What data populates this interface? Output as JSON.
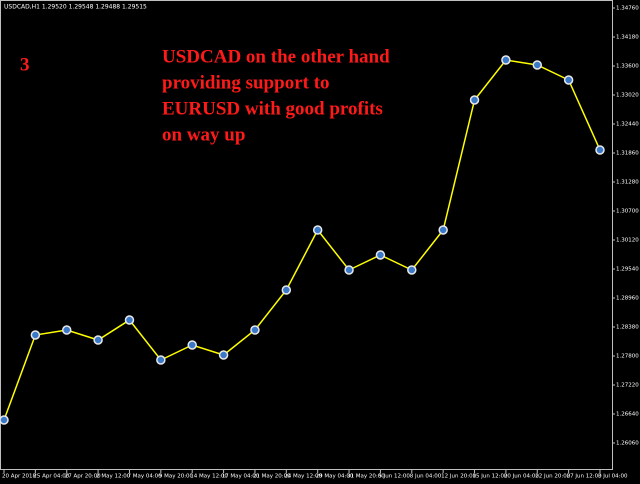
{
  "chart_data": {
    "type": "line",
    "title": "USDCAD,H1 1.29520 1.29548 1.29488 1.29515",
    "annotations": [
      "3",
      "USDCAD on the other hand",
      "providing support to",
      "EURUSD with good profits",
      "on way up"
    ],
    "categories": [
      "20 Apr 2018",
      "25 Apr 04:00",
      "27 Apr 20:00",
      "2 May 12:00",
      "7 May 04:00",
      "9 May 20:00",
      "14 May 12:00",
      "17 May 04:00",
      "21 May 20:00",
      "24 May 12:00",
      "29 May 04:00",
      "31 May 20:00",
      "5 Jun 12:00",
      "8 Jun 04:00",
      "12 Jun 20:00",
      "15 Jun 12:00",
      "20 Jun 04:00",
      "22 Jun 20:00",
      "27 Jun 12:00",
      "3 Jul 04:00"
    ],
    "series": [
      {
        "name": "USDCAD",
        "color": "#ffff00",
        "values": [
          1.2652,
          1.2822,
          1.2832,
          1.2812,
          1.2852,
          1.2772,
          1.2802,
          1.2782,
          1.2832,
          1.2912,
          1.3032,
          1.2952,
          1.2982,
          1.2952,
          1.3032,
          1.3292,
          1.3372,
          1.3362,
          1.3332,
          1.3192
        ]
      }
    ],
    "ylim": [
      1.2552,
      1.3492
    ],
    "yticks": [
      {
        "value": 1.3476,
        "label": "1.34760"
      },
      {
        "value": 1.3418,
        "label": "1.34180"
      },
      {
        "value": 1.336,
        "label": "1.33600"
      },
      {
        "value": 1.3302,
        "label": "1.33020"
      },
      {
        "value": 1.3244,
        "label": "1.32440"
      },
      {
        "value": 1.3186,
        "label": "1.31860"
      },
      {
        "value": 1.3128,
        "label": "1.31280"
      },
      {
        "value": 1.307,
        "label": "1.30700"
      },
      {
        "value": 1.3012,
        "label": "1.30120"
      },
      {
        "value": 1.2954,
        "label": "1.29540"
      },
      {
        "value": 1.2896,
        "label": "1.28960"
      },
      {
        "value": 1.2838,
        "label": "1.28380"
      },
      {
        "value": 1.278,
        "label": "1.27800"
      },
      {
        "value": 1.2722,
        "label": "1.27220"
      },
      {
        "value": 1.2664,
        "label": "1.26640"
      },
      {
        "value": 1.2606,
        "label": "1.26060"
      }
    ],
    "grid": false
  }
}
